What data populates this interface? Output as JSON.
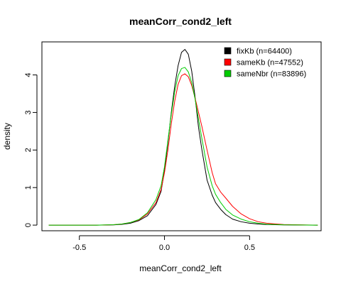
{
  "chart_data": {
    "type": "line",
    "title": "meanCorr_cond2_left",
    "xlabel": "meanCorr_cond2_left",
    "ylabel": "density",
    "xlim": [
      -0.72,
      0.92
    ],
    "ylim": [
      -0.15,
      4.88
    ],
    "x_ticks": [
      {
        "value": -0.5,
        "label": "-0.5"
      },
      {
        "value": 0.0,
        "label": "0.0"
      },
      {
        "value": 0.5,
        "label": "0.5"
      }
    ],
    "y_ticks": [
      {
        "value": 0,
        "label": "0"
      },
      {
        "value": 1,
        "label": "1"
      },
      {
        "value": 2,
        "label": "2"
      },
      {
        "value": 3,
        "label": "3"
      },
      {
        "value": 4,
        "label": "4"
      }
    ],
    "grid": false,
    "legend_position": "top-right",
    "series": [
      {
        "name": "fixKb (n=64400)",
        "color": "#000000",
        "points": [
          [
            -0.68,
            0
          ],
          [
            -0.4,
            0
          ],
          [
            -0.3,
            0.005
          ],
          [
            -0.25,
            0.02
          ],
          [
            -0.2,
            0.05
          ],
          [
            -0.15,
            0.12
          ],
          [
            -0.1,
            0.25
          ],
          [
            -0.05,
            0.55
          ],
          [
            -0.02,
            0.9
          ],
          [
            0.0,
            1.45
          ],
          [
            0.02,
            2.2
          ],
          [
            0.04,
            3.0
          ],
          [
            0.06,
            3.7
          ],
          [
            0.08,
            4.25
          ],
          [
            0.1,
            4.6
          ],
          [
            0.12,
            4.68
          ],
          [
            0.14,
            4.55
          ],
          [
            0.16,
            4.1
          ],
          [
            0.18,
            3.4
          ],
          [
            0.2,
            2.6
          ],
          [
            0.22,
            2.0
          ],
          [
            0.25,
            1.2
          ],
          [
            0.28,
            0.8
          ],
          [
            0.3,
            0.6
          ],
          [
            0.33,
            0.42
          ],
          [
            0.36,
            0.28
          ],
          [
            0.4,
            0.16
          ],
          [
            0.45,
            0.09
          ],
          [
            0.5,
            0.05
          ],
          [
            0.55,
            0.03
          ],
          [
            0.6,
            0.015
          ],
          [
            0.7,
            0.005
          ],
          [
            0.9,
            0
          ]
        ]
      },
      {
        "name": "sameKb (n=47552)",
        "color": "#ff0000",
        "points": [
          [
            -0.68,
            0
          ],
          [
            -0.4,
            0
          ],
          [
            -0.3,
            0.01
          ],
          [
            -0.25,
            0.03
          ],
          [
            -0.2,
            0.07
          ],
          [
            -0.15,
            0.14
          ],
          [
            -0.1,
            0.3
          ],
          [
            -0.05,
            0.6
          ],
          [
            -0.02,
            0.95
          ],
          [
            0.0,
            1.4
          ],
          [
            0.02,
            2.0
          ],
          [
            0.04,
            2.7
          ],
          [
            0.06,
            3.3
          ],
          [
            0.08,
            3.75
          ],
          [
            0.1,
            3.98
          ],
          [
            0.12,
            4.03
          ],
          [
            0.14,
            3.95
          ],
          [
            0.16,
            3.72
          ],
          [
            0.18,
            3.38
          ],
          [
            0.2,
            3.0
          ],
          [
            0.22,
            2.62
          ],
          [
            0.25,
            2.0
          ],
          [
            0.28,
            1.4
          ],
          [
            0.3,
            1.1
          ],
          [
            0.33,
            0.88
          ],
          [
            0.36,
            0.72
          ],
          [
            0.4,
            0.5
          ],
          [
            0.45,
            0.3
          ],
          [
            0.5,
            0.17
          ],
          [
            0.55,
            0.09
          ],
          [
            0.6,
            0.05
          ],
          [
            0.7,
            0.015
          ],
          [
            0.9,
            0
          ]
        ]
      },
      {
        "name": "sameNbr (n=83896)",
        "color": "#00cc00",
        "points": [
          [
            -0.68,
            0
          ],
          [
            -0.4,
            0
          ],
          [
            -0.3,
            0.01
          ],
          [
            -0.25,
            0.03
          ],
          [
            -0.2,
            0.07
          ],
          [
            -0.15,
            0.15
          ],
          [
            -0.1,
            0.33
          ],
          [
            -0.05,
            0.68
          ],
          [
            -0.02,
            1.05
          ],
          [
            0.0,
            1.55
          ],
          [
            0.02,
            2.25
          ],
          [
            0.04,
            2.95
          ],
          [
            0.06,
            3.55
          ],
          [
            0.08,
            3.98
          ],
          [
            0.1,
            4.17
          ],
          [
            0.12,
            4.2
          ],
          [
            0.14,
            4.08
          ],
          [
            0.16,
            3.8
          ],
          [
            0.18,
            3.35
          ],
          [
            0.2,
            2.82
          ],
          [
            0.22,
            2.3
          ],
          [
            0.25,
            1.55
          ],
          [
            0.28,
            1.05
          ],
          [
            0.3,
            0.82
          ],
          [
            0.33,
            0.6
          ],
          [
            0.36,
            0.42
          ],
          [
            0.4,
            0.27
          ],
          [
            0.45,
            0.16
          ],
          [
            0.5,
            0.09
          ],
          [
            0.55,
            0.05
          ],
          [
            0.6,
            0.025
          ],
          [
            0.7,
            0.008
          ],
          [
            0.9,
            0
          ]
        ]
      }
    ]
  }
}
